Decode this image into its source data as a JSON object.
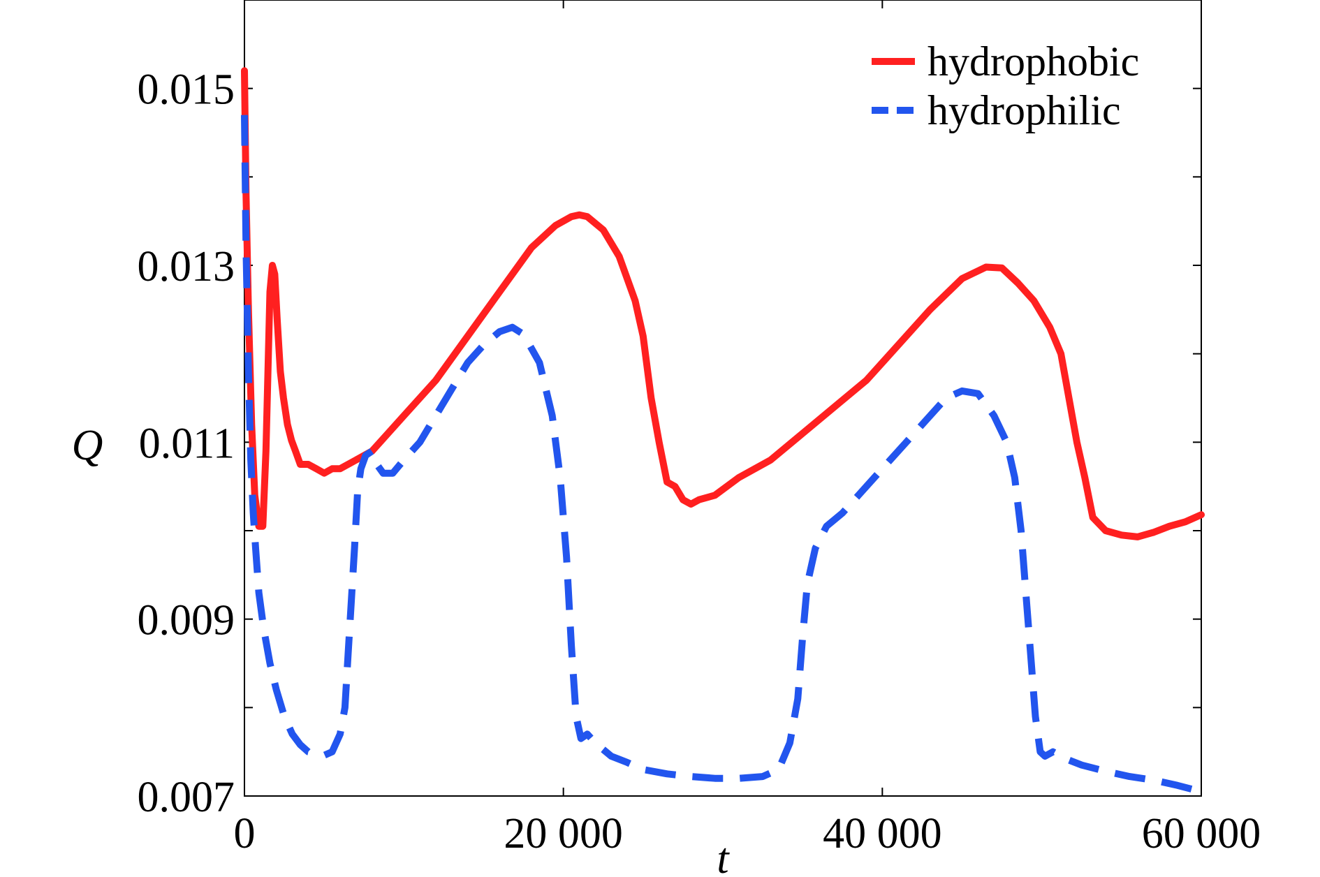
{
  "chart_data": {
    "type": "line",
    "title": "",
    "xlabel": "t",
    "ylabel": "Q",
    "xlim": [
      0,
      60000
    ],
    "ylim": [
      0.007,
      0.016
    ],
    "x_ticks": [
      0,
      20000,
      40000,
      60000
    ],
    "x_tick_labels": [
      "0",
      "20 000",
      "40 000",
      "60 000"
    ],
    "y_ticks": [
      0.007,
      0.008,
      0.009,
      0.01,
      0.011,
      0.012,
      0.013,
      0.014,
      0.015,
      0.016
    ],
    "y_tick_labels": [
      "0.007",
      "",
      "0.009",
      "",
      "0.011",
      "",
      "0.013",
      "",
      "0.015",
      ""
    ],
    "grid": false,
    "legend_position": "top-right",
    "series": [
      {
        "name": "hydrophobic",
        "color": "#ff2020",
        "style": "solid",
        "points": [
          [
            0,
            0.0152
          ],
          [
            100,
            0.0138
          ],
          [
            250,
            0.0125
          ],
          [
            450,
            0.0112
          ],
          [
            650,
            0.0104
          ],
          [
            900,
            0.01005
          ],
          [
            1150,
            0.01005
          ],
          [
            1350,
            0.0109
          ],
          [
            1500,
            0.012
          ],
          [
            1600,
            0.0127
          ],
          [
            1750,
            0.013
          ],
          [
            1900,
            0.0129
          ],
          [
            2050,
            0.0124
          ],
          [
            2250,
            0.0118
          ],
          [
            2450,
            0.0115
          ],
          [
            2700,
            0.0112
          ],
          [
            2950,
            0.01102
          ],
          [
            3200,
            0.0109
          ],
          [
            3500,
            0.01075
          ],
          [
            4000,
            0.01075
          ],
          [
            4500,
            0.0107
          ],
          [
            5000,
            0.01065
          ],
          [
            5500,
            0.0107
          ],
          [
            6000,
            0.0107
          ],
          [
            7000,
            0.0108
          ],
          [
            8000,
            0.0109
          ],
          [
            9000,
            0.0111
          ],
          [
            10000,
            0.0113
          ],
          [
            12000,
            0.0117
          ],
          [
            14000,
            0.0122
          ],
          [
            16000,
            0.0127
          ],
          [
            18000,
            0.0132
          ],
          [
            19500,
            0.01345
          ],
          [
            20500,
            0.01355
          ],
          [
            21000,
            0.01357
          ],
          [
            21500,
            0.01355
          ],
          [
            22500,
            0.0134
          ],
          [
            23500,
            0.0131
          ],
          [
            24500,
            0.0126
          ],
          [
            25000,
            0.0122
          ],
          [
            25500,
            0.0115
          ],
          [
            26000,
            0.011
          ],
          [
            26500,
            0.01055
          ],
          [
            27000,
            0.0105
          ],
          [
            27500,
            0.01035
          ],
          [
            28000,
            0.0103
          ],
          [
            28500,
            0.01035
          ],
          [
            29500,
            0.0104
          ],
          [
            31000,
            0.0106
          ],
          [
            33000,
            0.0108
          ],
          [
            35000,
            0.0111
          ],
          [
            37000,
            0.0114
          ],
          [
            39000,
            0.0117
          ],
          [
            41000,
            0.0121
          ],
          [
            43000,
            0.0125
          ],
          [
            45000,
            0.01285
          ],
          [
            46500,
            0.01298
          ],
          [
            47500,
            0.01297
          ],
          [
            48500,
            0.0128
          ],
          [
            49500,
            0.0126
          ],
          [
            50500,
            0.0123
          ],
          [
            51200,
            0.012
          ],
          [
            51700,
            0.0115
          ],
          [
            52200,
            0.011
          ],
          [
            52700,
            0.0106
          ],
          [
            53200,
            0.01015
          ],
          [
            54000,
            0.01
          ],
          [
            55000,
            0.00995
          ],
          [
            56000,
            0.00993
          ],
          [
            57000,
            0.00998
          ],
          [
            58000,
            0.01005
          ],
          [
            59000,
            0.0101
          ],
          [
            60000,
            0.01018
          ]
        ]
      },
      {
        "name": "hydrophilic",
        "color": "#2255ee",
        "style": "dashed",
        "points": [
          [
            0,
            0.0147
          ],
          [
            100,
            0.0132
          ],
          [
            250,
            0.0118
          ],
          [
            400,
            0.0108
          ],
          [
            550,
            0.0102
          ],
          [
            700,
            0.0098
          ],
          [
            900,
            0.0093
          ],
          [
            1200,
            0.0089
          ],
          [
            1600,
            0.0085
          ],
          [
            2000,
            0.0082
          ],
          [
            2500,
            0.0079
          ],
          [
            3000,
            0.0077
          ],
          [
            3500,
            0.00758
          ],
          [
            4000,
            0.0075
          ],
          [
            4500,
            0.00748
          ],
          [
            5000,
            0.00746
          ],
          [
            5500,
            0.0075
          ],
          [
            6000,
            0.0077
          ],
          [
            6300,
            0.008
          ],
          [
            6500,
            0.0086
          ],
          [
            6700,
            0.0092
          ],
          [
            6900,
            0.0098
          ],
          [
            7100,
            0.01045
          ],
          [
            7300,
            0.0107
          ],
          [
            7600,
            0.01085
          ],
          [
            8000,
            0.0109
          ],
          [
            8300,
            0.01075
          ],
          [
            8700,
            0.01065
          ],
          [
            9300,
            0.01065
          ],
          [
            10000,
            0.0108
          ],
          [
            11000,
            0.011
          ],
          [
            12000,
            0.0113
          ],
          [
            13000,
            0.0116
          ],
          [
            14000,
            0.0119
          ],
          [
            15000,
            0.0121
          ],
          [
            16000,
            0.01225
          ],
          [
            16800,
            0.0123
          ],
          [
            17500,
            0.01222
          ],
          [
            18500,
            0.0119
          ],
          [
            19300,
            0.0113
          ],
          [
            19800,
            0.0106
          ],
          [
            20200,
            0.0097
          ],
          [
            20500,
            0.0087
          ],
          [
            20800,
            0.0079
          ],
          [
            21100,
            0.00765
          ],
          [
            21500,
            0.0077
          ],
          [
            22000,
            0.0076
          ],
          [
            23000,
            0.00745
          ],
          [
            24000,
            0.00738
          ],
          [
            25000,
            0.0073
          ],
          [
            26500,
            0.00725
          ],
          [
            28000,
            0.00722
          ],
          [
            29500,
            0.0072
          ],
          [
            31000,
            0.0072
          ],
          [
            32500,
            0.00722
          ],
          [
            33500,
            0.0073
          ],
          [
            34200,
            0.0076
          ],
          [
            34700,
            0.0081
          ],
          [
            35000,
            0.0088
          ],
          [
            35300,
            0.0094
          ],
          [
            35800,
            0.0098
          ],
          [
            36500,
            0.01005
          ],
          [
            37500,
            0.0102
          ],
          [
            38500,
            0.0104
          ],
          [
            40000,
            0.0107
          ],
          [
            41500,
            0.011
          ],
          [
            43000,
            0.0113
          ],
          [
            44000,
            0.0115
          ],
          [
            45000,
            0.01158
          ],
          [
            46000,
            0.01155
          ],
          [
            47000,
            0.0113
          ],
          [
            47800,
            0.011
          ],
          [
            48300,
            0.0106
          ],
          [
            48700,
            0.01
          ],
          [
            49000,
            0.0093
          ],
          [
            49300,
            0.0086
          ],
          [
            49600,
            0.0079
          ],
          [
            49900,
            0.0075
          ],
          [
            50200,
            0.00745
          ],
          [
            50700,
            0.0075
          ],
          [
            51500,
            0.00742
          ],
          [
            52500,
            0.00735
          ],
          [
            54000,
            0.00728
          ],
          [
            55500,
            0.00722
          ],
          [
            57000,
            0.00718
          ],
          [
            58500,
            0.00712
          ],
          [
            60000,
            0.00705
          ]
        ]
      }
    ]
  }
}
